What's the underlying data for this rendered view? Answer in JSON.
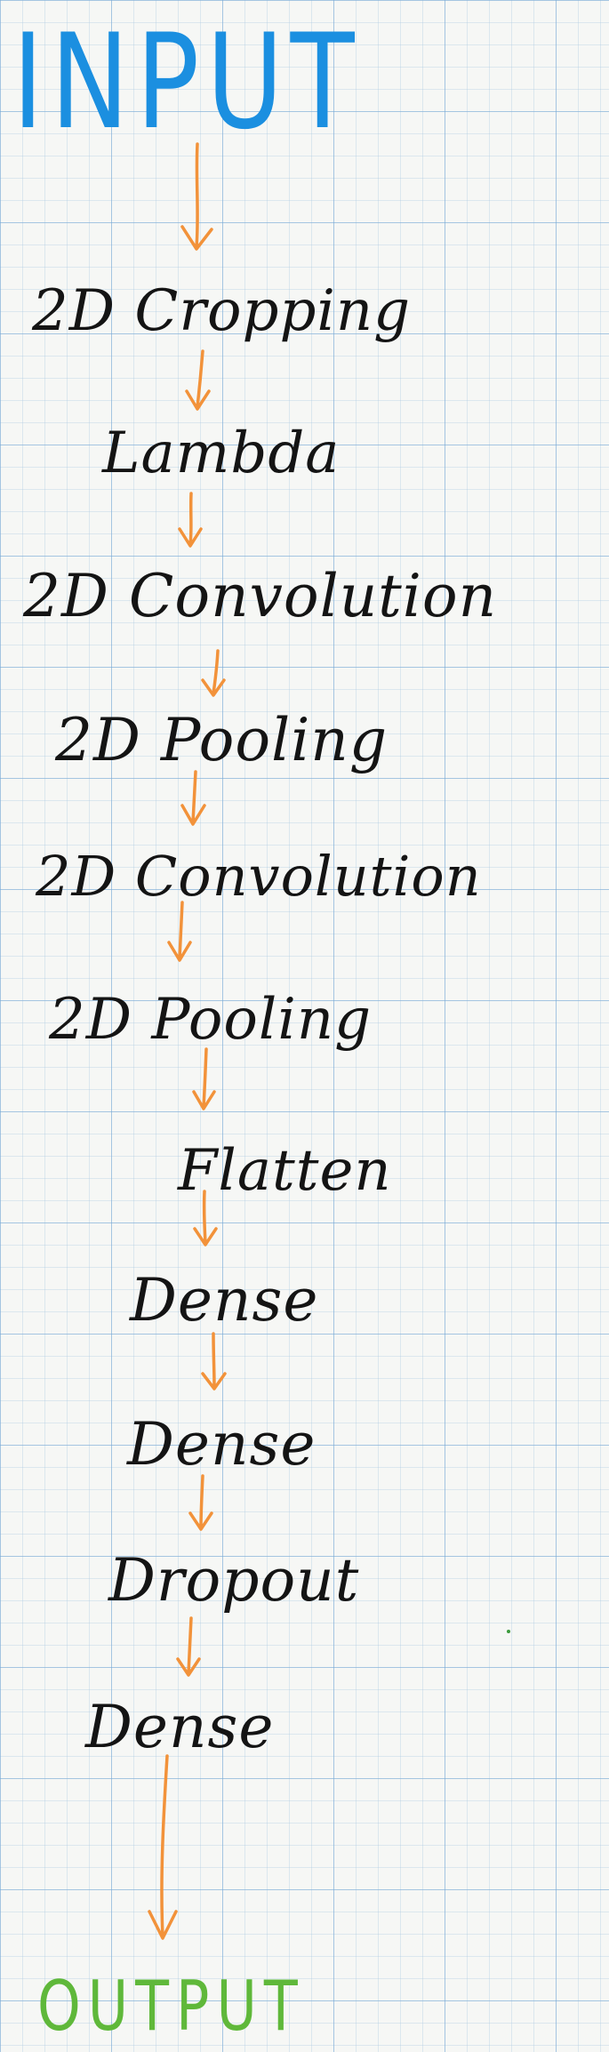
{
  "colors": {
    "input": "#1b8fe0",
    "output": "#5fb83a",
    "layer_text": "#141414",
    "arrow": "#f2923a"
  },
  "diagram": {
    "input_label": "INPUT",
    "output_label": "OUTPUT",
    "layers": [
      "2D Cropping",
      "Lambda",
      "2D Convolution",
      "2D Pooling",
      "2D Convolution",
      "2D Pooling",
      "Flatten",
      "Dense",
      "Dense",
      "Dropout",
      "Dense"
    ]
  }
}
